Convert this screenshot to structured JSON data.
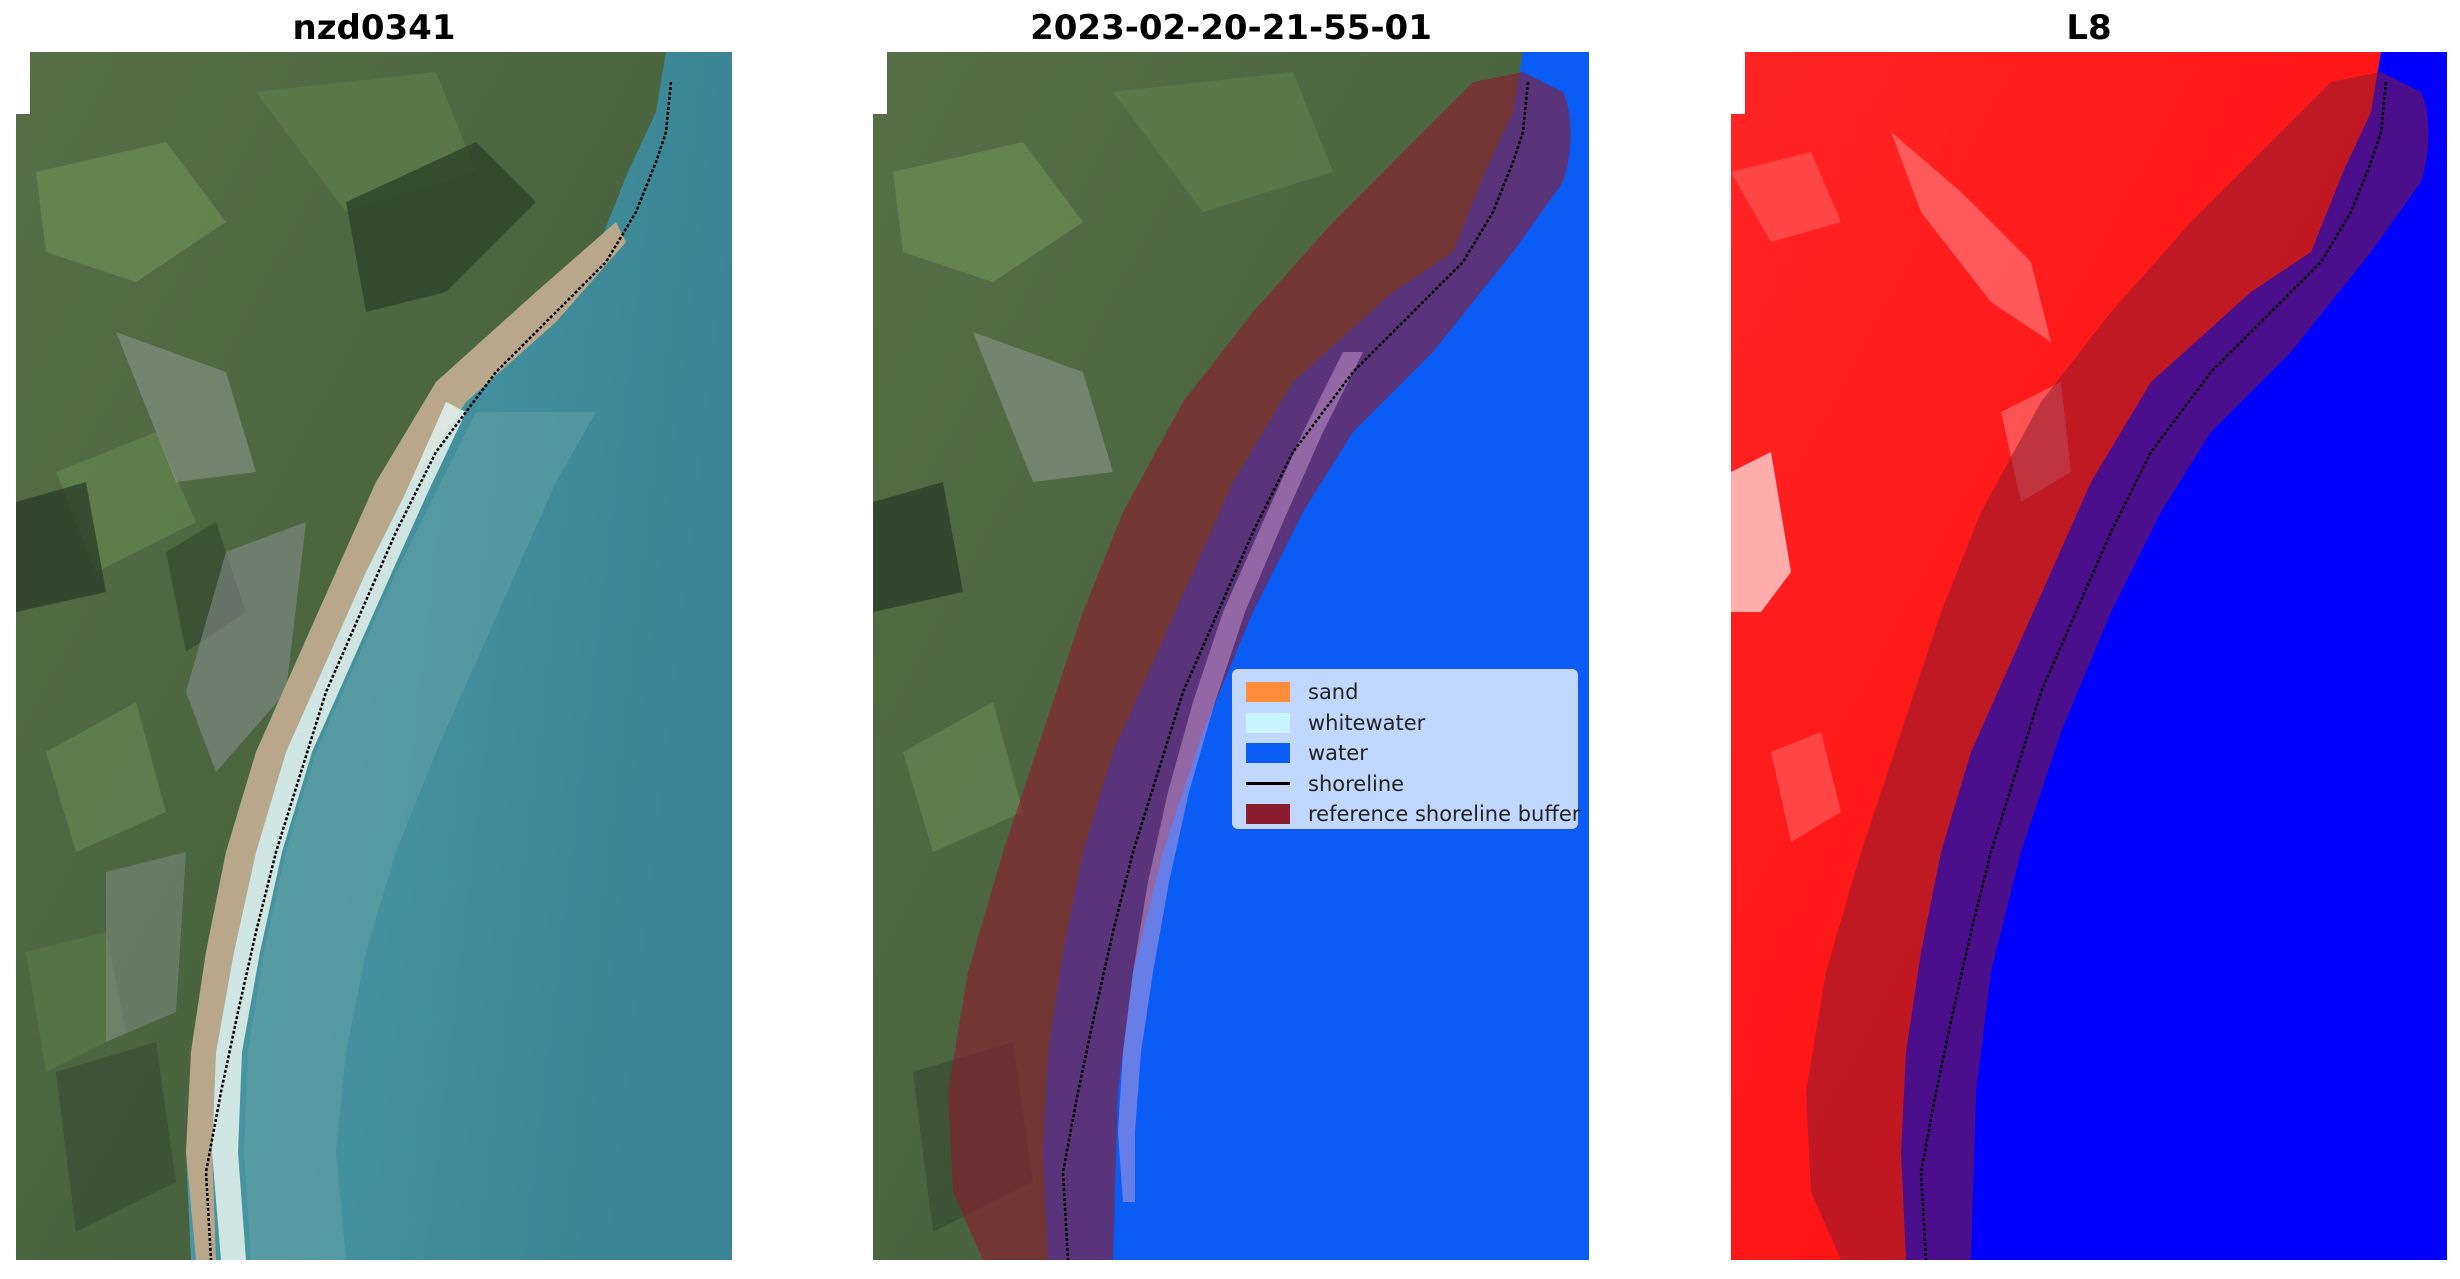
{
  "titles": [
    "nzd0341",
    "2023-02-20-21-55-01",
    "L8"
  ],
  "legend": [
    {
      "label": "sand",
      "color": "#ff8c3a",
      "kind": "patch"
    },
    {
      "label": "whitewater",
      "color": "#c8f4ff",
      "kind": "patch"
    },
    {
      "label": "water",
      "color": "#0a5cf5",
      "kind": "patch"
    },
    {
      "label": "shoreline",
      "color": "#000000",
      "kind": "line"
    },
    {
      "label": "reference shoreline buffer",
      "color": "#8b1c2e",
      "kind": "patch"
    }
  ],
  "colors": {
    "land": "#4f6a44",
    "field": "#6f8f55",
    "forest": "#2f452c",
    "sea": "#3f8d99",
    "sea_shallow": "#6aa7a6",
    "beach": "#b7a58a",
    "surf": "#dfeee9",
    "classified_water": "#0a5cf5",
    "buffer": "#8b1c2e",
    "index_land": "#ff1a1a",
    "index_water": "#0000ff"
  }
}
